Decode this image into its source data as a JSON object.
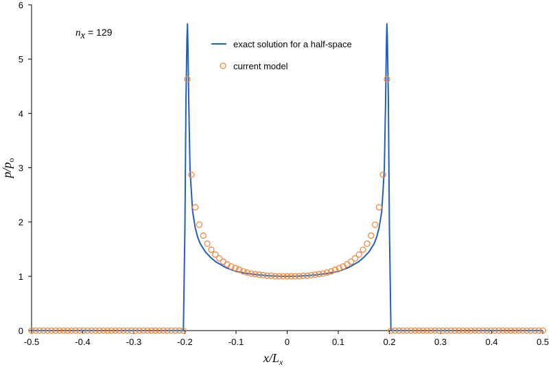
{
  "chart_data": {
    "type": "scatter",
    "title": "",
    "xlabel": "x/L",
    "xlabel_sub": "x",
    "ylabel": "p/p",
    "ylabel_sub": "o",
    "xlim": [
      -0.5,
      0.5
    ],
    "ylim": [
      0,
      6
    ],
    "xticks": [
      "-0.5",
      "-0.4",
      "-0.3",
      "-0.2",
      "-0.1",
      "0",
      "0.1",
      "0.2",
      "0.3",
      "0.4",
      "0.5"
    ],
    "yticks": [
      "0",
      "1",
      "2",
      "3",
      "4",
      "5",
      "6"
    ],
    "grid": false,
    "legend_position": "top-center",
    "annotation": {
      "var": "n",
      "sub": "x",
      "text": " = 129"
    },
    "series": [
      {
        "name": "exact solution for a half-space",
        "kind": "line",
        "color": "#1f5fbf",
        "x": [
          -0.5,
          -0.203,
          -0.2,
          -0.198,
          -0.196,
          -0.195,
          -0.194,
          -0.1925,
          -0.19,
          -0.185,
          -0.18,
          -0.175,
          -0.17,
          -0.16,
          -0.15,
          -0.14,
          -0.12,
          -0.1,
          -0.08,
          -0.06,
          -0.04,
          -0.02,
          0,
          0.02,
          0.04,
          0.06,
          0.08,
          0.1,
          0.12,
          0.14,
          0.15,
          0.16,
          0.17,
          0.175,
          0.18,
          0.185,
          0.19,
          0.1925,
          0.194,
          0.195,
          0.196,
          0.198,
          0.2,
          0.203,
          0.5
        ],
        "y": [
          0,
          0,
          1.9,
          4.2,
          5.4,
          5.65,
          5.2,
          4.2,
          2.95,
          2.2,
          1.9,
          1.72,
          1.6,
          1.45,
          1.35,
          1.27,
          1.16,
          1.09,
          1.055,
          1.03,
          1.012,
          1.003,
          1.0,
          1.003,
          1.012,
          1.03,
          1.055,
          1.09,
          1.16,
          1.27,
          1.35,
          1.45,
          1.6,
          1.72,
          1.9,
          2.2,
          2.95,
          4.2,
          5.2,
          5.65,
          5.4,
          4.2,
          1.9,
          0,
          0
        ]
      },
      {
        "name": "current model",
        "kind": "markers",
        "color": "#f0883e",
        "x": [
          -0.5,
          -0.4922,
          -0.4844,
          -0.4766,
          -0.4688,
          -0.4609,
          -0.4531,
          -0.4453,
          -0.4375,
          -0.4297,
          -0.4219,
          -0.4141,
          -0.4063,
          -0.3984,
          -0.3906,
          -0.3828,
          -0.375,
          -0.3672,
          -0.3594,
          -0.3516,
          -0.3438,
          -0.3359,
          -0.3281,
          -0.3203,
          -0.3125,
          -0.3047,
          -0.2969,
          -0.2891,
          -0.2813,
          -0.2734,
          -0.2656,
          -0.2578,
          -0.25,
          -0.2422,
          -0.2344,
          -0.2266,
          -0.2188,
          -0.2109,
          -0.2031,
          -0.1953,
          -0.1875,
          -0.1797,
          -0.1719,
          -0.1641,
          -0.1563,
          -0.1484,
          -0.1406,
          -0.1328,
          -0.125,
          -0.1172,
          -0.1094,
          -0.1016,
          -0.0938,
          -0.0859,
          -0.0781,
          -0.0703,
          -0.0625,
          -0.0547,
          -0.0469,
          -0.0391,
          -0.0313,
          -0.0234,
          -0.0156,
          -0.0078,
          0,
          0.0078,
          0.0156,
          0.0234,
          0.0313,
          0.0391,
          0.0469,
          0.0547,
          0.0625,
          0.0703,
          0.0781,
          0.0859,
          0.0938,
          0.1016,
          0.1094,
          0.1172,
          0.125,
          0.1328,
          0.1406,
          0.1484,
          0.1563,
          0.1641,
          0.1719,
          0.1797,
          0.1875,
          0.1953,
          0.2031,
          0.2109,
          0.2188,
          0.2266,
          0.2344,
          0.2422,
          0.25,
          0.2578,
          0.2656,
          0.2734,
          0.2813,
          0.2891,
          0.2969,
          0.3047,
          0.3125,
          0.3203,
          0.3281,
          0.3359,
          0.3438,
          0.3516,
          0.3594,
          0.3672,
          0.375,
          0.3828,
          0.3906,
          0.3984,
          0.4063,
          0.4141,
          0.4219,
          0.4297,
          0.4375,
          0.4453,
          0.4531,
          0.4609,
          0.4688,
          0.4766,
          0.4844,
          0.4922,
          0.5
        ],
        "y": [
          0,
          0,
          0,
          0,
          0,
          0,
          0,
          0,
          0,
          0,
          0,
          0,
          0,
          0,
          0,
          0,
          0,
          0,
          0,
          0,
          0,
          0,
          0,
          0,
          0,
          0,
          0,
          0,
          0,
          0,
          0,
          0,
          0,
          0,
          0,
          0,
          0,
          0,
          0,
          4.63,
          2.87,
          2.27,
          1.95,
          1.75,
          1.6,
          1.49,
          1.4,
          1.33,
          1.27,
          1.22,
          1.18,
          1.15,
          1.12,
          1.09,
          1.07,
          1.05,
          1.04,
          1.03,
          1.02,
          1.01,
          1.01,
          1.0,
          1.0,
          1.0,
          1.0,
          1.0,
          1.0,
          1.0,
          1.01,
          1.01,
          1.02,
          1.03,
          1.04,
          1.05,
          1.07,
          1.09,
          1.12,
          1.15,
          1.18,
          1.22,
          1.27,
          1.33,
          1.4,
          1.49,
          1.6,
          1.75,
          1.95,
          2.27,
          2.87,
          4.63,
          0,
          0,
          0,
          0,
          0,
          0,
          0,
          0,
          0,
          0,
          0,
          0,
          0,
          0,
          0,
          0,
          0,
          0,
          0,
          0,
          0,
          0,
          0,
          0,
          0,
          0,
          0,
          0,
          0,
          0,
          0,
          0,
          0,
          0,
          0,
          0,
          0,
          0,
          0
        ]
      }
    ]
  }
}
